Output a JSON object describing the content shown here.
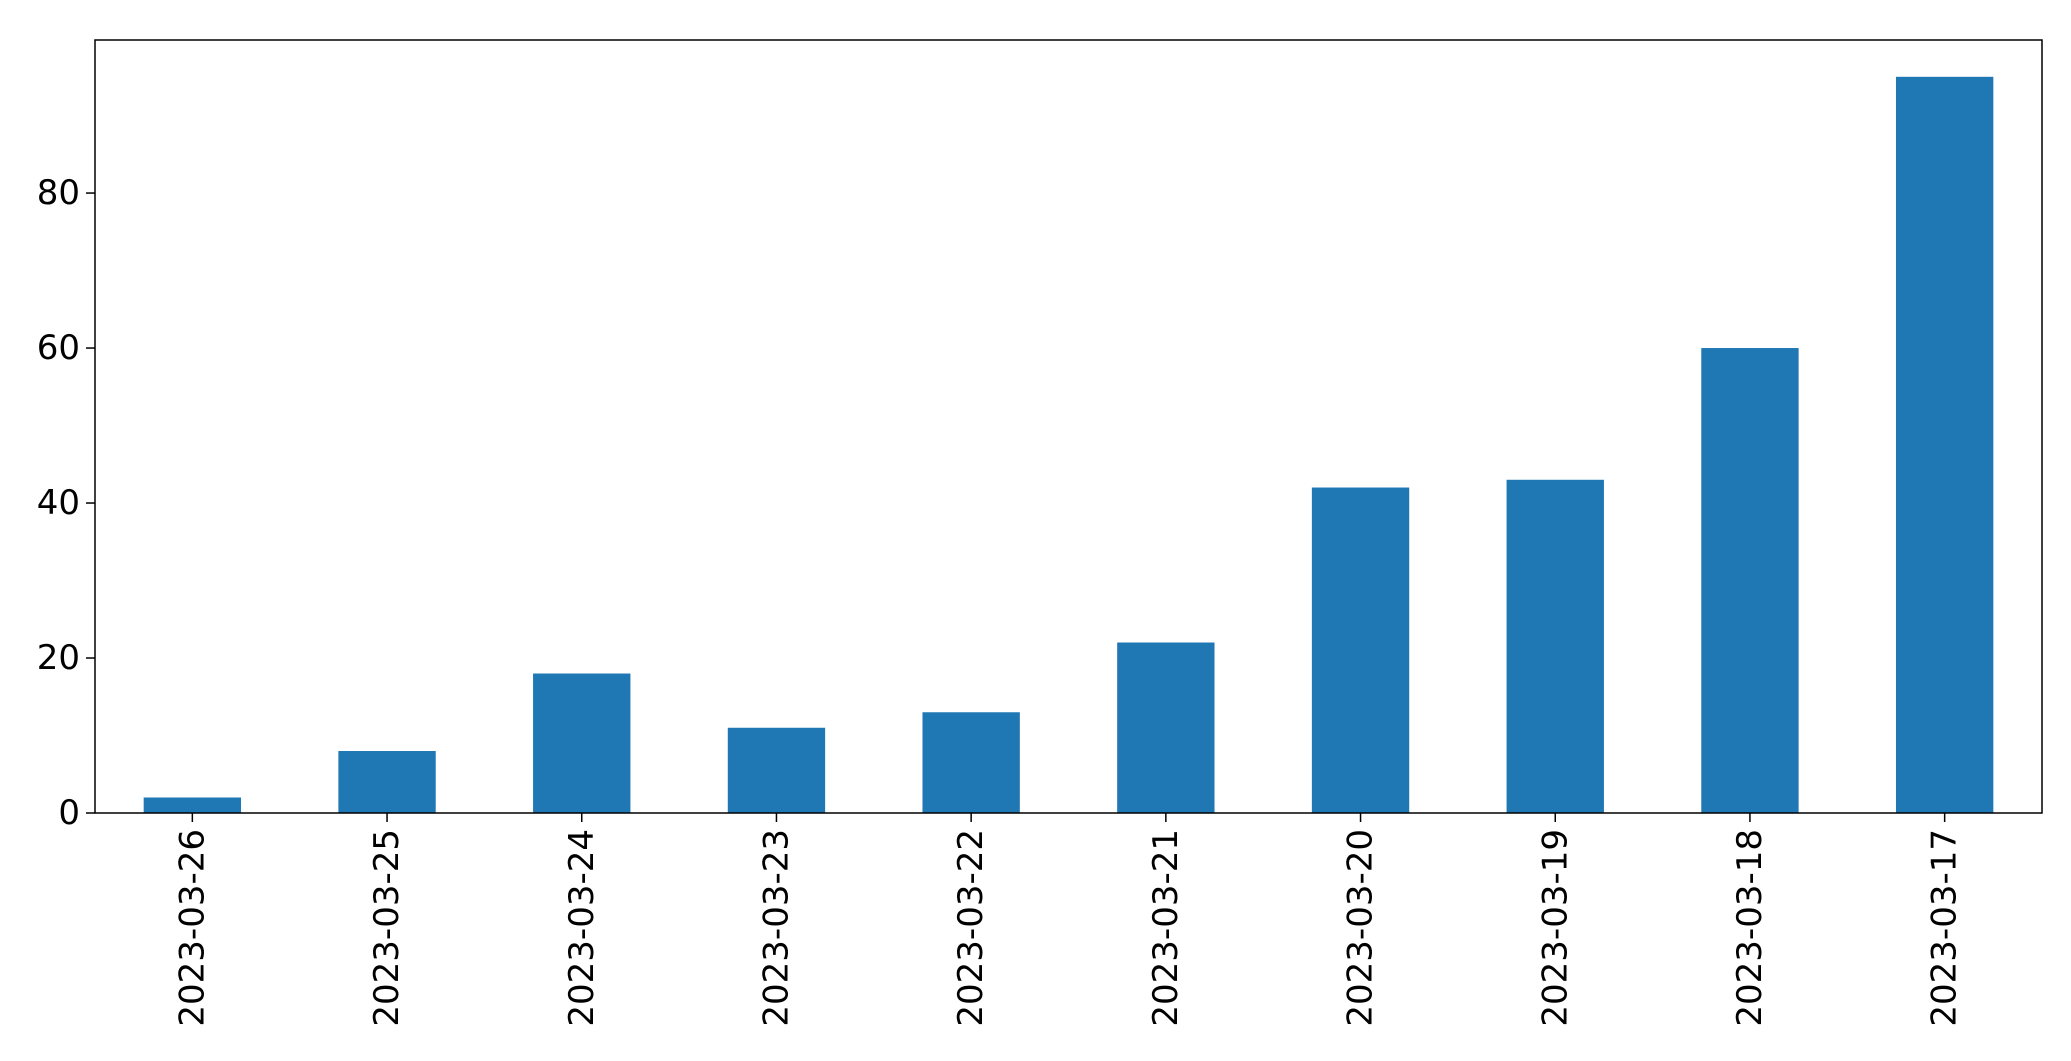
{
  "chart_data": {
    "type": "bar",
    "title": "",
    "xlabel": "",
    "ylabel": "",
    "categories": [
      "2023-03-26",
      "2023-03-25",
      "2023-03-24",
      "2023-03-23",
      "2023-03-22",
      "2023-03-21",
      "2023-03-20",
      "2023-03-19",
      "2023-03-18",
      "2023-03-17"
    ],
    "values": [
      2,
      8,
      18,
      11,
      13,
      22,
      42,
      43,
      60,
      95
    ],
    "ylim": [
      0,
      99.75
    ],
    "yticks": [
      0,
      20,
      40,
      60,
      80
    ],
    "grid": false,
    "legend": "none",
    "bar_color": "#1f77b4",
    "axis_color": "#000000",
    "background": "#ffffff"
  }
}
